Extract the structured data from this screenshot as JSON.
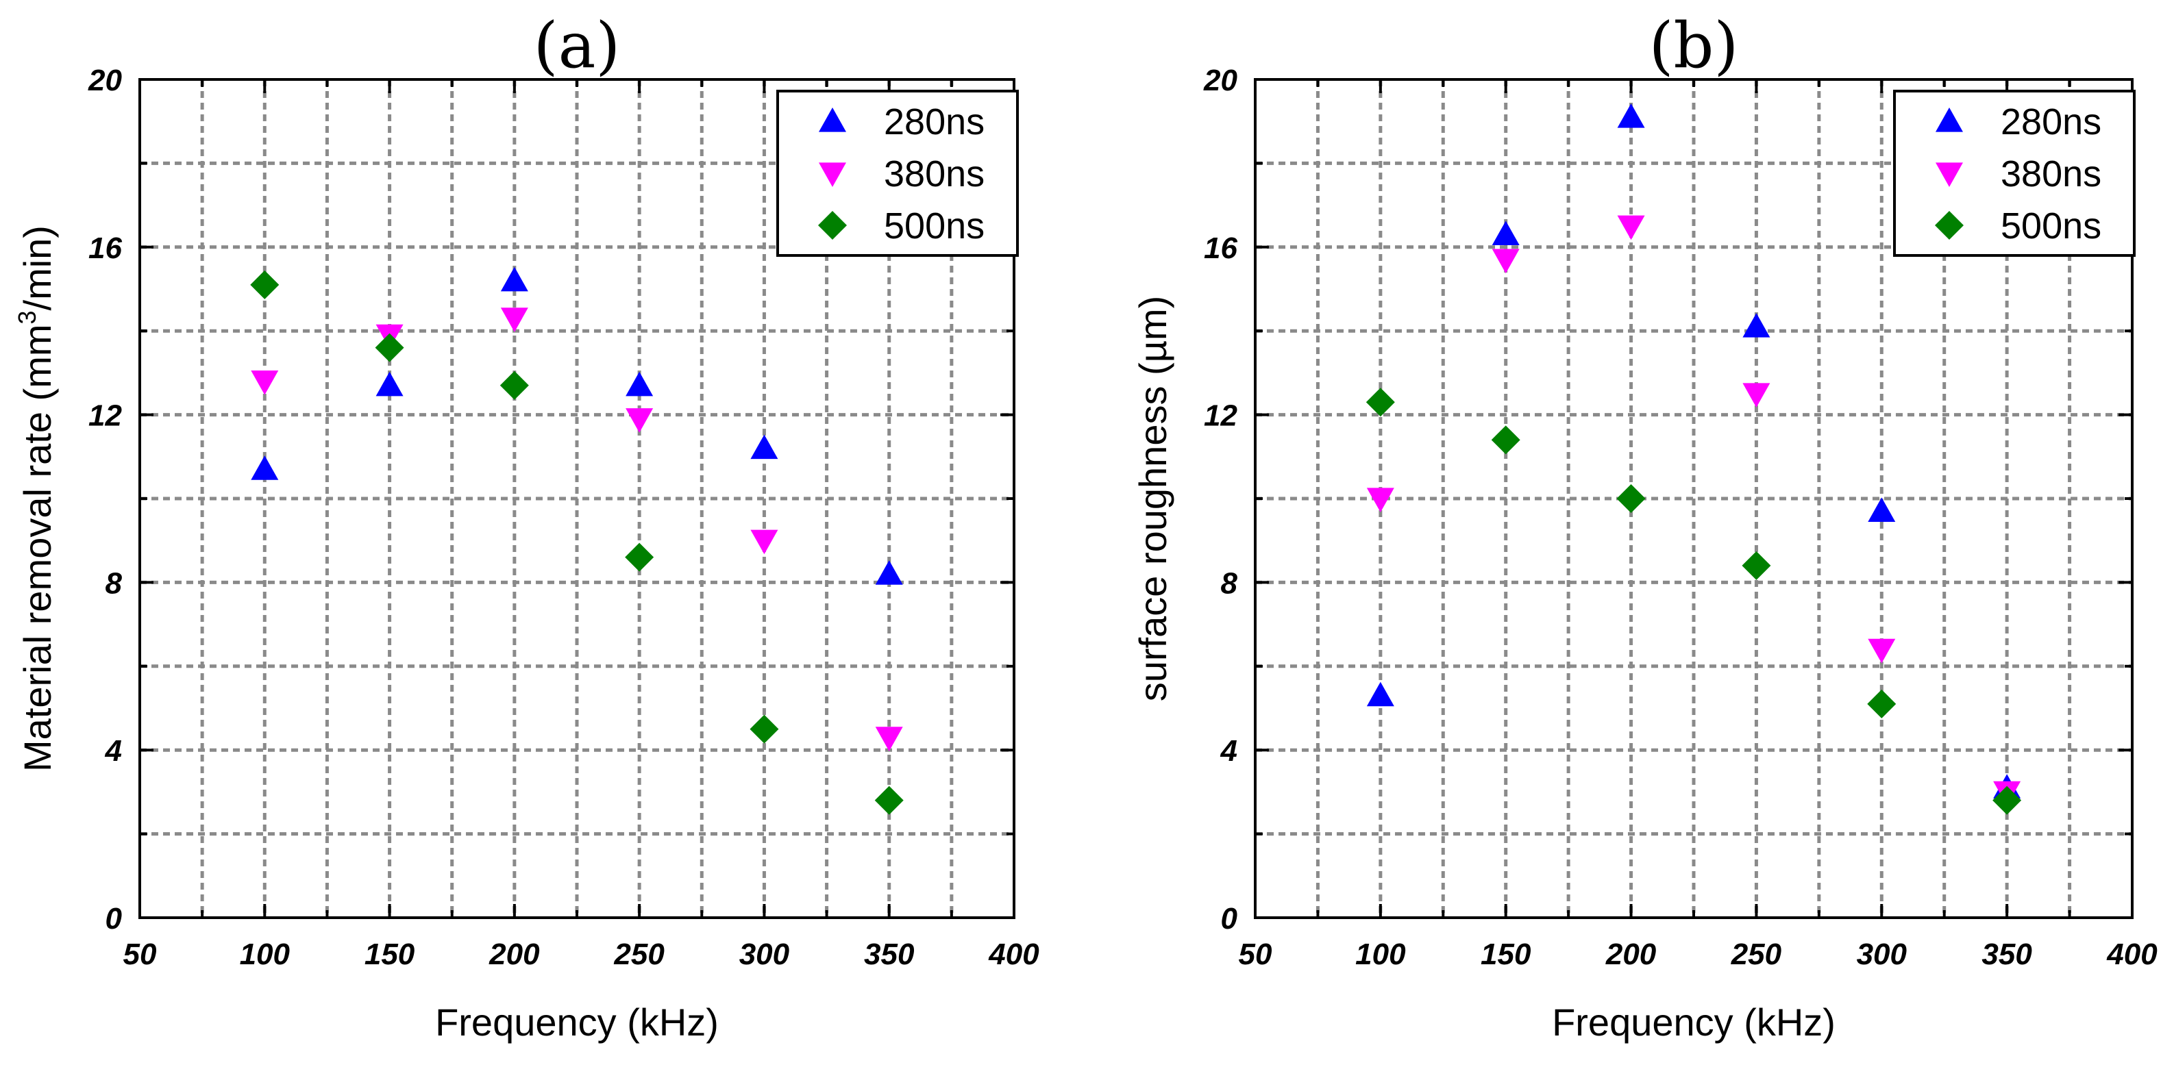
{
  "chart_data": [
    {
      "type": "scatter",
      "panel_label": "(a)",
      "xlabel": "Frequency (kHz)",
      "ylabel_main": "Material removal rate (mm",
      "ylabel_sup": "3",
      "ylabel_tail": "/min)",
      "xlim": [
        50,
        400
      ],
      "ylim": [
        0,
        20
      ],
      "xticks": [
        50,
        100,
        150,
        200,
        250,
        300,
        350,
        400
      ],
      "xtick_labels": [
        "50",
        "100",
        "150",
        "200",
        "250",
        "300",
        "350",
        "400"
      ],
      "yticks": [
        0,
        4,
        8,
        12,
        16,
        20
      ],
      "ytick_labels": [
        "0",
        "4",
        "8",
        "12",
        "16",
        "20"
      ],
      "grid": true,
      "legend_position": "top-right",
      "x": [
        100,
        150,
        200,
        250,
        300,
        350
      ],
      "series": [
        {
          "name": "280ns",
          "marker": "triangle-up",
          "color": "#0000ff",
          "values": [
            10.7,
            12.7,
            15.2,
            12.7,
            11.2,
            8.2
          ]
        },
        {
          "name": "380ns",
          "marker": "triangle-down",
          "color": "#ff00ff",
          "values": [
            12.8,
            13.9,
            14.3,
            11.9,
            9.0,
            4.3
          ]
        },
        {
          "name": "500ns",
          "marker": "diamond",
          "color": "#008000",
          "values": [
            15.1,
            13.6,
            12.7,
            8.6,
            4.5,
            2.8
          ]
        }
      ]
    },
    {
      "type": "scatter",
      "panel_label": "(b)",
      "xlabel": "Frequency (kHz)",
      "ylabel_main": "surface roughness (µm)",
      "ylabel_sup": "",
      "ylabel_tail": "",
      "xlim": [
        50,
        400
      ],
      "ylim": [
        0,
        20
      ],
      "xticks": [
        50,
        100,
        150,
        200,
        250,
        300,
        350,
        400
      ],
      "xtick_labels": [
        "50",
        "100",
        "150",
        "200",
        "250",
        "300",
        "350",
        "400"
      ],
      "yticks": [
        0,
        4,
        8,
        12,
        16,
        20
      ],
      "ytick_labels": [
        "0",
        "4",
        "8",
        "12",
        "16",
        "20"
      ],
      "grid": true,
      "legend_position": "top-right",
      "x": [
        100,
        150,
        200,
        250,
        300,
        350
      ],
      "series": [
        {
          "name": "280ns",
          "marker": "triangle-up",
          "color": "#0000ff",
          "values": [
            5.3,
            16.3,
            19.1,
            14.1,
            9.7,
            3.1
          ]
        },
        {
          "name": "380ns",
          "marker": "triangle-down",
          "color": "#ff00ff",
          "values": [
            10.0,
            15.7,
            16.5,
            12.5,
            6.4,
            3.0
          ]
        },
        {
          "name": "500ns",
          "marker": "diamond",
          "color": "#008000",
          "values": [
            12.3,
            11.4,
            10.0,
            8.4,
            5.1,
            2.8
          ]
        }
      ]
    }
  ]
}
